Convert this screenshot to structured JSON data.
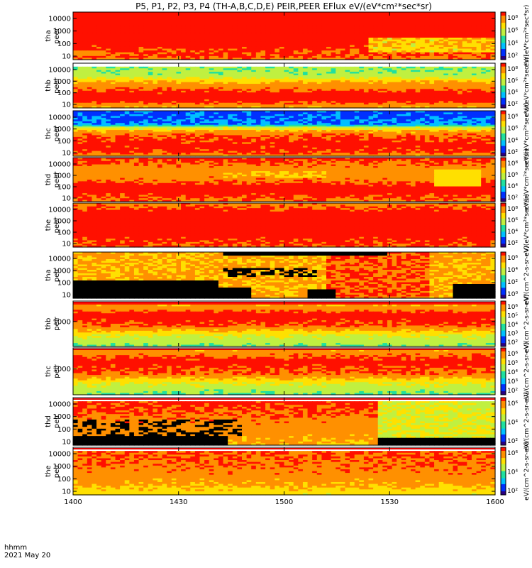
{
  "title": "P5, P1, P2, P3, P4 (TH-A,B,C,D,E) PEIR,PEER EFlux eV/(eV*cm²*sec*sr)",
  "footer": {
    "hhmm": "hhmm",
    "date": "2021 May 20"
  },
  "chart_data": {
    "type": "heatmap",
    "x": {
      "tick_labels": [
        "1400",
        "1430",
        "1500",
        "1530",
        "1600"
      ],
      "range_minutes": [
        0,
        120
      ]
    },
    "colors": {
      "scale": [
        "#ffffff",
        "#2a0080",
        "#0030ff",
        "#00c0ff",
        "#20e0a0",
        "#c0f040",
        "#ffe000",
        "#ff9000",
        "#ff1000"
      ],
      "gap": "#ffffff",
      "flag_line": "#e00000"
    },
    "panels": [
      {
        "label1": "tha",
        "label2": "peer",
        "yticks": [
          "10000",
          "1000",
          "100",
          "10"
        ],
        "colorbar_ticks": [
          "10⁸",
          "10⁶",
          "10⁴",
          "10²"
        ],
        "colorbar_unit": "eV/(eV*cm²*sec*sr)",
        "pattern": "tha_peer"
      },
      {
        "label1": "thb",
        "label2": "peer",
        "yticks": [
          "10000",
          "1000",
          "100",
          "10"
        ],
        "colorbar_ticks": [
          "10⁸",
          "10⁶",
          "10⁴",
          "10²"
        ],
        "colorbar_unit": "eV/(eV*cm²*sec*sr)",
        "pattern": "thb_peer"
      },
      {
        "label1": "thc",
        "label2": "peer",
        "yticks": [
          "10000",
          "1000",
          "100",
          "10"
        ],
        "colorbar_ticks": [
          "10⁸",
          "10⁶",
          "10⁴",
          "10²"
        ],
        "colorbar_unit": "eV/(eV*cm²*sec*sr)",
        "pattern": "thc_peer"
      },
      {
        "label1": "thd",
        "label2": "peer",
        "yticks": [
          "10000",
          "1000",
          "100",
          "10"
        ],
        "colorbar_ticks": [
          "10⁸",
          "10⁶",
          "10⁴",
          "10²"
        ],
        "colorbar_unit": "eV/(eV*cm²*sec*sr)",
        "pattern": "thd_peer"
      },
      {
        "label1": "the",
        "label2": "peer",
        "yticks": [
          "10000",
          "1000",
          "100",
          "10"
        ],
        "colorbar_ticks": [
          "10⁸",
          "10⁶",
          "10⁴",
          "10²"
        ],
        "colorbar_unit": "eV/(eV*cm²*sec*sr)",
        "pattern": "the_peer"
      },
      {
        "label1": "tha",
        "label2": "peir",
        "yticks": [
          "10000",
          "1000",
          "100",
          "10"
        ],
        "colorbar_ticks": [
          "10⁶",
          "10⁴",
          "10²",
          "10⁰"
        ],
        "colorbar_unit": "eV/(cm^2-s-sr-eV)",
        "pattern": "tha_peir"
      },
      {
        "label1": "thb",
        "label2": "peir",
        "yticks": [
          "1000"
        ],
        "colorbar_ticks": [
          "10⁶",
          "10⁵",
          "10⁴",
          "10³",
          "10²"
        ],
        "colorbar_unit": "eV/(cm^2-s-sr-eV)",
        "pattern": "thb_peir"
      },
      {
        "label1": "thc",
        "label2": "peir",
        "yticks": [
          "1000"
        ],
        "colorbar_ticks": [
          "10⁶",
          "10⁵",
          "10⁴",
          "10³",
          "10²"
        ],
        "colorbar_unit": "eV/(cm^2-s-sr-eV)",
        "pattern": "thc_peir"
      },
      {
        "label1": "thd",
        "label2": "peir",
        "yticks": [
          "10000",
          "1000",
          "100",
          "10"
        ],
        "colorbar_ticks": [
          "10⁶",
          "10⁴",
          "10²"
        ],
        "colorbar_unit": "eV/(cm^2-s-sr-eV)",
        "pattern": "thd_peir"
      },
      {
        "label1": "the",
        "label2": "peir",
        "yticks": [
          "10000",
          "1000",
          "100",
          "10"
        ],
        "colorbar_ticks": [
          "10⁶",
          "10⁴",
          "10²"
        ],
        "colorbar_unit": "eV/(cm^2-s-sr-eV)",
        "pattern": "the_peir"
      }
    ]
  }
}
